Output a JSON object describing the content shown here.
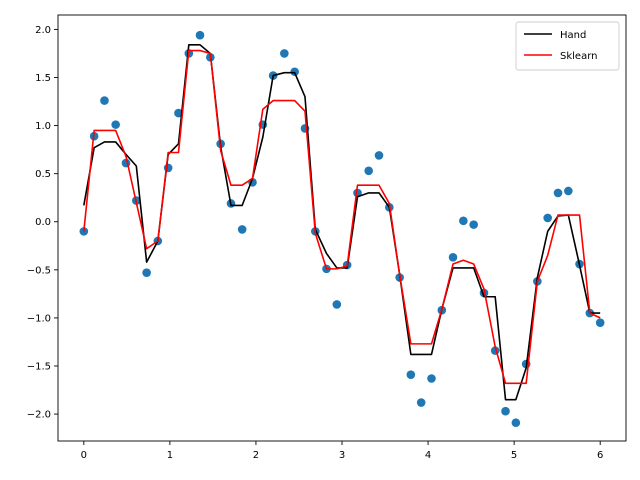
{
  "chart_data": {
    "type": "scatter",
    "xlim": [
      -0.3,
      6.3
    ],
    "ylim": [
      -2.28,
      2.15
    ],
    "xticks": [
      0,
      1,
      2,
      3,
      4,
      5,
      6
    ],
    "yticks": [
      -2.0,
      -1.5,
      -1.0,
      -0.5,
      0.0,
      0.5,
      1.0,
      1.5,
      2.0
    ],
    "grid": false,
    "legend_position": "top-right",
    "points": {
      "color": "#1f77b4",
      "x": [
        0.0,
        0.12,
        0.24,
        0.37,
        0.49,
        0.61,
        0.73,
        0.86,
        0.98,
        1.1,
        1.22,
        1.35,
        1.47,
        1.59,
        1.71,
        1.84,
        1.96,
        2.08,
        2.2,
        2.33,
        2.45,
        2.57,
        2.69,
        2.82,
        2.94,
        3.06,
        3.18,
        3.31,
        3.43,
        3.55,
        3.67,
        3.8,
        3.92,
        4.04,
        4.16,
        4.29,
        4.41,
        4.53,
        4.65,
        4.78,
        4.9,
        5.02,
        5.14,
        5.27,
        5.39,
        5.51,
        5.63,
        5.76,
        5.88,
        6.0
      ],
      "y": [
        -0.1,
        0.89,
        1.26,
        1.01,
        0.61,
        0.22,
        -0.53,
        -0.2,
        0.56,
        1.13,
        1.75,
        1.94,
        1.71,
        0.81,
        0.19,
        -0.08,
        0.41,
        1.01,
        1.52,
        1.75,
        1.56,
        0.97,
        -0.1,
        -0.49,
        -0.86,
        -0.45,
        0.3,
        0.53,
        0.69,
        0.15,
        -0.58,
        -1.59,
        -1.88,
        -1.63,
        -0.92,
        -0.37,
        0.01,
        -0.03,
        -0.74,
        -1.34,
        -1.97,
        -2.09,
        -1.48,
        -0.62,
        0.04,
        0.3,
        0.32,
        -0.44,
        -0.95,
        -1.05
      ]
    },
    "series": [
      {
        "name": "Hand",
        "color": "#000000",
        "x": [
          0.0,
          0.12,
          0.24,
          0.37,
          0.49,
          0.61,
          0.73,
          0.86,
          0.98,
          1.1,
          1.22,
          1.35,
          1.47,
          1.59,
          1.71,
          1.84,
          1.96,
          2.08,
          2.2,
          2.33,
          2.45,
          2.57,
          2.69,
          2.82,
          2.94,
          3.06,
          3.18,
          3.31,
          3.43,
          3.55,
          3.67,
          3.8,
          3.92,
          4.04,
          4.16,
          4.29,
          4.41,
          4.53,
          4.65,
          4.78,
          4.9,
          5.02,
          5.14,
          5.27,
          5.39,
          5.51,
          5.63,
          5.76,
          5.88,
          6.0
        ],
        "y": [
          0.17,
          0.77,
          0.83,
          0.83,
          0.7,
          0.58,
          -0.42,
          -0.2,
          0.7,
          0.81,
          1.84,
          1.84,
          1.75,
          0.78,
          0.17,
          0.17,
          0.45,
          0.88,
          1.52,
          1.55,
          1.55,
          1.3,
          -0.08,
          -0.33,
          -0.48,
          -0.48,
          0.26,
          0.3,
          0.3,
          0.15,
          -0.55,
          -1.38,
          -1.38,
          -1.38,
          -0.91,
          -0.48,
          -0.48,
          -0.48,
          -0.78,
          -0.78,
          -1.85,
          -1.85,
          -1.52,
          -0.58,
          -0.1,
          0.06,
          0.07,
          -0.45,
          -0.95,
          -0.95
        ]
      },
      {
        "name": "Sklearn",
        "color": "#ff0000",
        "x": [
          0.0,
          0.12,
          0.24,
          0.37,
          0.49,
          0.61,
          0.73,
          0.86,
          0.98,
          1.1,
          1.22,
          1.35,
          1.47,
          1.59,
          1.71,
          1.84,
          1.96,
          2.08,
          2.2,
          2.33,
          2.45,
          2.57,
          2.69,
          2.82,
          2.94,
          3.06,
          3.18,
          3.31,
          3.43,
          3.55,
          3.67,
          3.8,
          3.92,
          4.04,
          4.16,
          4.29,
          4.41,
          4.53,
          4.65,
          4.78,
          4.9,
          5.02,
          5.14,
          5.27,
          5.39,
          5.51,
          5.63,
          5.76,
          5.88,
          6.0
        ],
        "y": [
          -0.1,
          0.95,
          0.95,
          0.95,
          0.68,
          0.2,
          -0.28,
          -0.2,
          0.72,
          0.72,
          1.78,
          1.78,
          1.75,
          0.74,
          0.38,
          0.38,
          0.45,
          1.17,
          1.26,
          1.26,
          1.26,
          1.15,
          -0.12,
          -0.49,
          -0.49,
          -0.46,
          0.38,
          0.38,
          0.38,
          0.19,
          -0.55,
          -1.27,
          -1.27,
          -1.27,
          -0.91,
          -0.44,
          -0.4,
          -0.44,
          -0.7,
          -1.3,
          -1.68,
          -1.68,
          -1.68,
          -0.62,
          -0.35,
          0.07,
          0.07,
          0.07,
          -0.95,
          -1.0
        ]
      }
    ]
  }
}
